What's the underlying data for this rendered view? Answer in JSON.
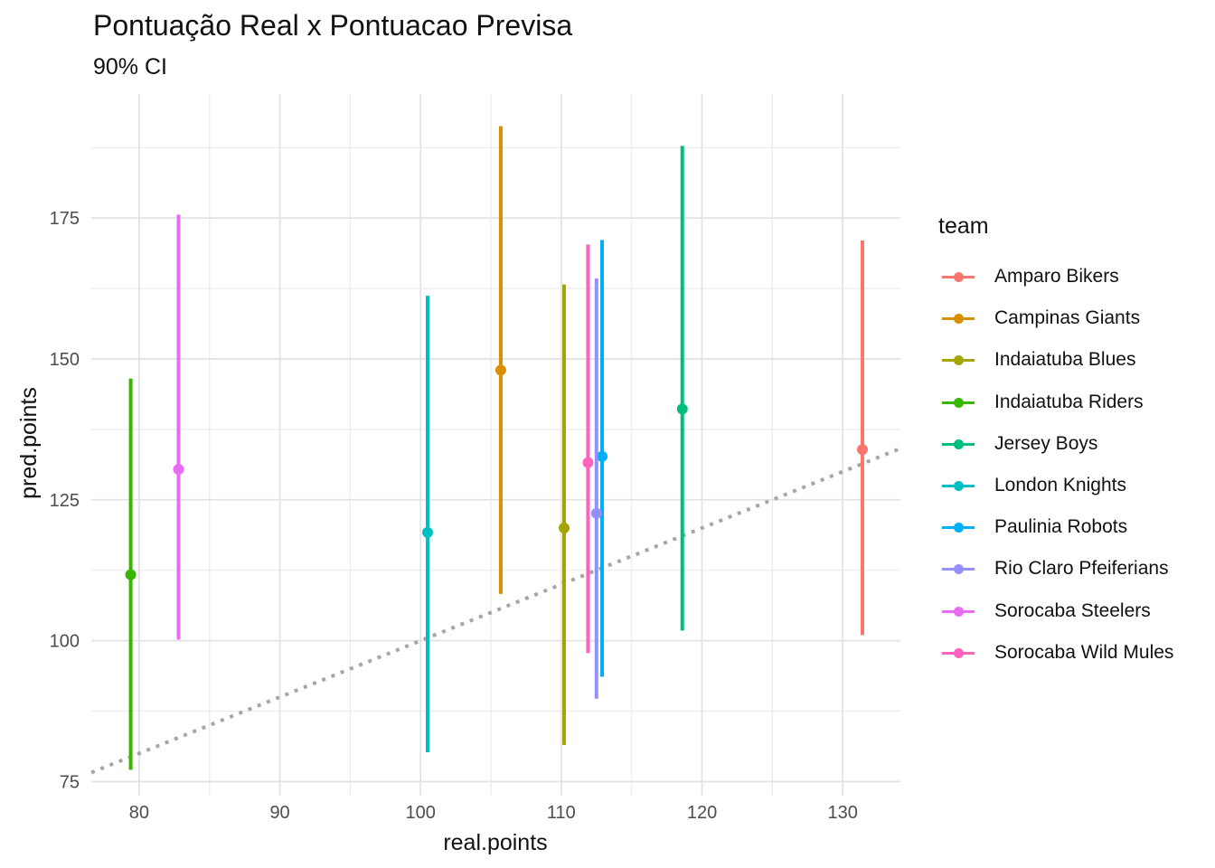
{
  "chart_data": {
    "type": "pointrange",
    "title": "Pontuação Real x Pontuacao Previsa",
    "subtitle": "90% CI",
    "xlabel": "real.points",
    "ylabel": "pred.points",
    "xlim": [
      76.6,
      134.1
    ],
    "ylim": [
      72.5,
      197
    ],
    "x_ticks": [
      80,
      90,
      100,
      110,
      120,
      130
    ],
    "y_ticks": [
      75,
      100,
      125,
      150,
      175
    ],
    "reference_line": {
      "style": "dotted",
      "color": "#a6a6a6",
      "slope": 1,
      "intercept": 0
    },
    "legend": {
      "title": "team",
      "position": "right"
    },
    "series": [
      {
        "name": "Amparo Bikers",
        "color": "#F8766D",
        "x": 131.4,
        "y": 133.9,
        "ymin": 101.0,
        "ymax": 171.0
      },
      {
        "name": "Campinas Giants",
        "color": "#D89000",
        "x": 105.7,
        "y": 148.0,
        "ymin": 108.3,
        "ymax": 191.3
      },
      {
        "name": "Indaiatuba Blues",
        "color": "#A3A500",
        "x": 110.2,
        "y": 120.0,
        "ymin": 81.5,
        "ymax": 163.2
      },
      {
        "name": "Indaiatuba Riders",
        "color": "#39B600",
        "x": 79.4,
        "y": 111.7,
        "ymin": 77.1,
        "ymax": 146.5
      },
      {
        "name": "Jersey Boys",
        "color": "#00BF7D",
        "x": 118.6,
        "y": 141.1,
        "ymin": 101.8,
        "ymax": 187.8
      },
      {
        "name": "London Knights",
        "color": "#00BFC4",
        "x": 100.5,
        "y": 119.2,
        "ymin": 80.2,
        "ymax": 161.2
      },
      {
        "name": "Paulinia Robots",
        "color": "#00B0F6",
        "x": 112.9,
        "y": 132.7,
        "ymin": 93.6,
        "ymax": 171.1
      },
      {
        "name": "Rio Claro Pfeiferians",
        "color": "#9590FF",
        "x": 112.5,
        "y": 122.6,
        "ymin": 89.7,
        "ymax": 164.3
      },
      {
        "name": "Sorocaba Steelers",
        "color": "#E76BF3",
        "x": 82.8,
        "y": 130.4,
        "ymin": 100.2,
        "ymax": 175.6
      },
      {
        "name": "Sorocaba Wild Mules",
        "color": "#FF62BC",
        "x": 111.9,
        "y": 131.6,
        "ymin": 97.8,
        "ymax": 170.3
      }
    ]
  }
}
